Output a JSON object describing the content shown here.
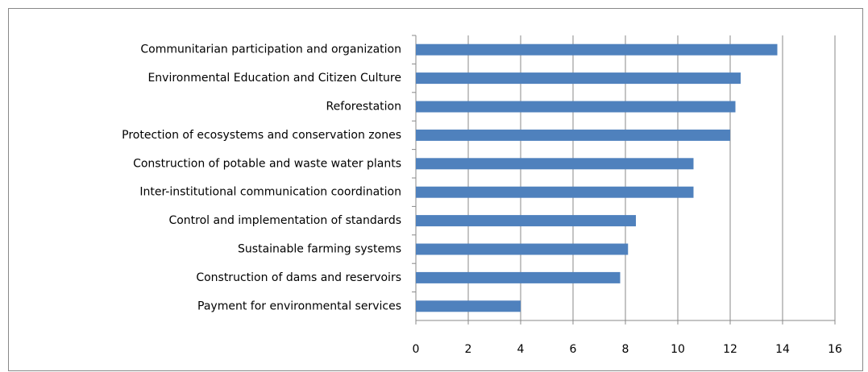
{
  "chart_data": {
    "type": "bar",
    "orientation": "horizontal",
    "categories": [
      "Communitarian participation and organization",
      "Environmental Education and Citizen Culture",
      "Reforestation",
      "Protection of ecosystems and conservation zones",
      "Construction of potable and waste water plants",
      "Inter-institutional communication coordination",
      "Control and implementation of standards",
      "Sustainable farming systems",
      "Construction of dams and reservoirs",
      "Payment for environmental services"
    ],
    "values": [
      13.8,
      12.4,
      12.2,
      12.0,
      10.6,
      10.6,
      8.4,
      8.1,
      7.8,
      4.0
    ],
    "color": "#4f81bd",
    "xlim": [
      0,
      16
    ],
    "xticks": [
      0,
      2,
      4,
      6,
      8,
      10,
      12,
      14,
      16
    ],
    "grid": true
  }
}
